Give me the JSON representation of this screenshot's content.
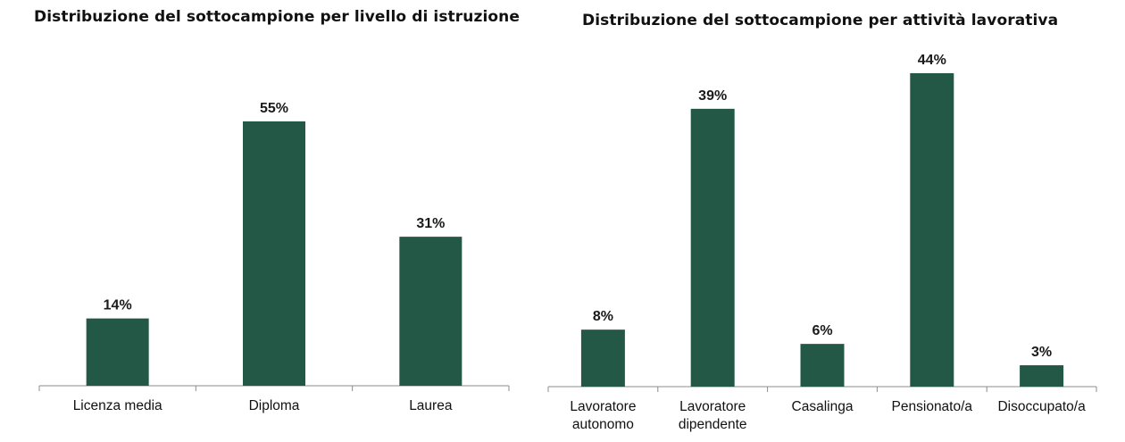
{
  "chart_data": [
    {
      "type": "bar",
      "title": "Distribuzione del sottocampione per livello di istruzione",
      "categories": [
        "Licenza media",
        "Diploma",
        "Laurea"
      ],
      "values": [
        14,
        55,
        31
      ],
      "value_labels": [
        "14%",
        "55%",
        "31%"
      ],
      "ylim": [
        0,
        60
      ],
      "grid": false,
      "bar_color": "#235847"
    },
    {
      "type": "bar",
      "title": "Distribuzione del sottocampione per attività lavorativa",
      "categories": [
        "Lavoratore autonomo",
        "Lavoratore dipendente",
        "Casalinga",
        "Pensionato/a",
        "Disoccupato/a"
      ],
      "category_lines": [
        [
          "Lavoratore",
          "autonomo"
        ],
        [
          "Lavoratore",
          "dipendente"
        ],
        [
          "Casalinga"
        ],
        [
          "Pensionato/a"
        ],
        [
          "Disoccupato/a"
        ]
      ],
      "values": [
        8,
        39,
        6,
        44,
        3
      ],
      "value_labels": [
        "8%",
        "39%",
        "6%",
        "44%",
        "3%"
      ],
      "ylim": [
        0,
        46
      ],
      "grid": false,
      "bar_color": "#235847"
    }
  ]
}
